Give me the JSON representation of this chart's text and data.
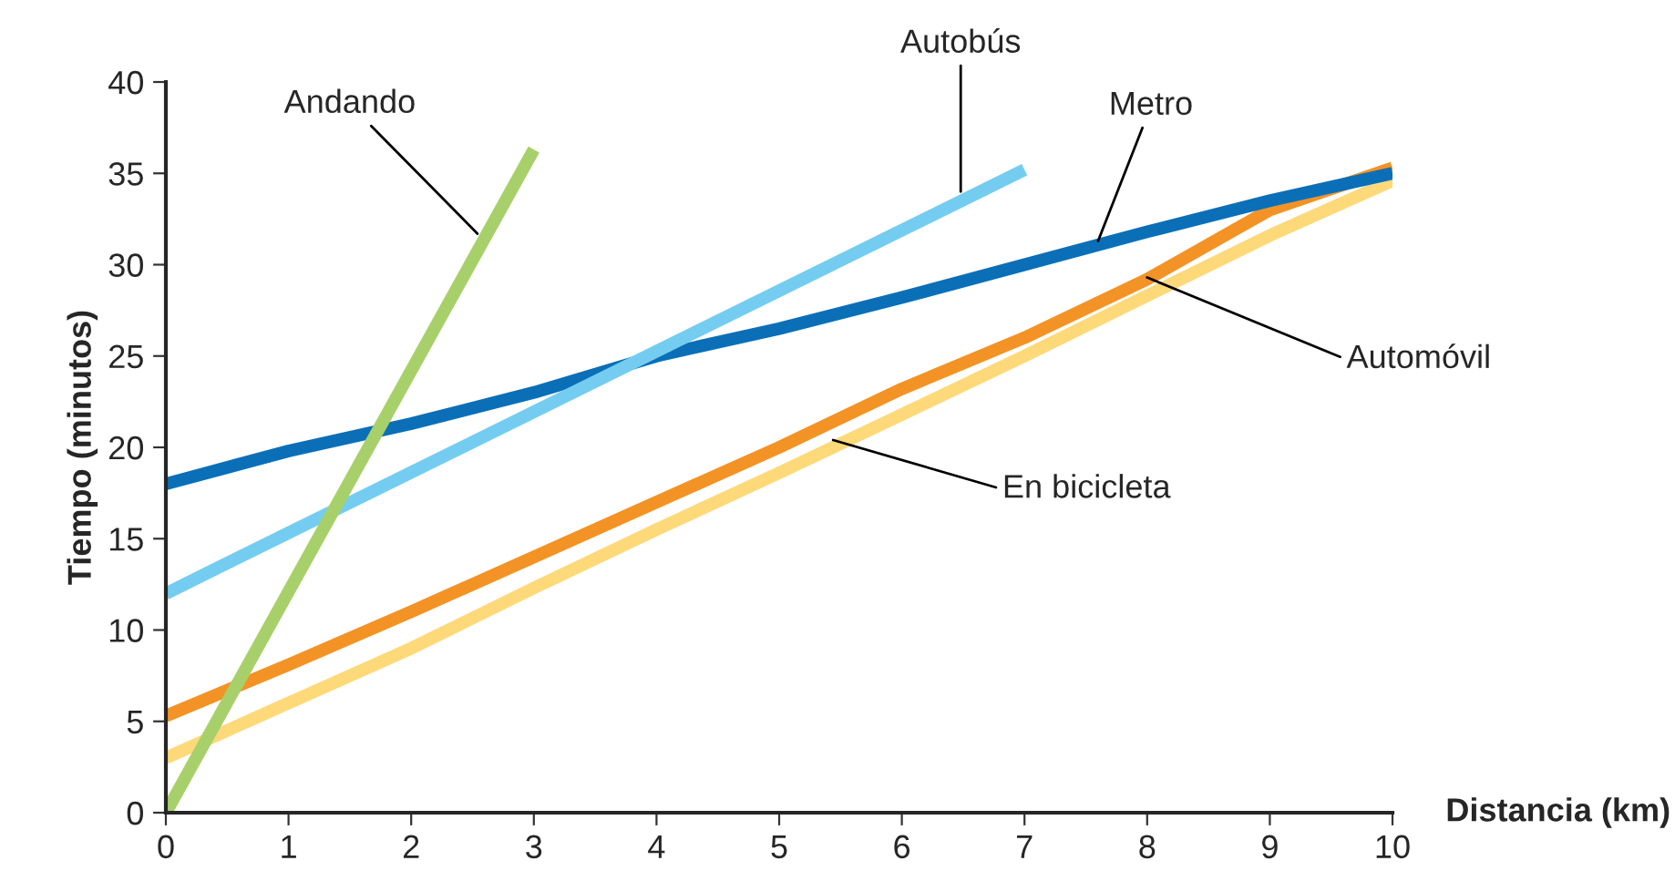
{
  "chart_data": {
    "type": "line",
    "xlabel": "Distancia (km)",
    "ylabel": "Tiempo (minutos)",
    "xlim": [
      0,
      10
    ],
    "ylim": [
      0,
      40
    ],
    "xticks": [
      0,
      1,
      2,
      3,
      4,
      5,
      6,
      7,
      8,
      9,
      10
    ],
    "yticks": [
      0,
      5,
      10,
      15,
      20,
      25,
      30,
      35,
      40
    ],
    "grid": false,
    "legend": false,
    "marker": "none",
    "line_style": "solid",
    "series": [
      {
        "color": "#fdd97a",
        "x": [
          0,
          1,
          2,
          3,
          4,
          5,
          6,
          7,
          8,
          9,
          10
        ],
        "values": [
          3,
          6,
          9,
          12.3,
          15.5,
          18.6,
          21.8,
          25,
          28.3,
          31.6,
          34.6
        ]
      },
      {
        "color": "#f39325",
        "x": [
          0,
          1,
          2,
          3,
          4,
          5,
          6,
          7,
          8,
          9,
          10
        ],
        "values": [
          5.3,
          8.1,
          11,
          14,
          17,
          20,
          23.2,
          26,
          29.2,
          33,
          35.3
        ]
      },
      {
        "color": "#0a6fb7",
        "x": [
          0,
          1,
          2,
          3,
          4,
          5,
          6,
          7,
          8,
          9,
          10
        ],
        "values": [
          18,
          19.8,
          21.3,
          23,
          25,
          26.5,
          28.2,
          30,
          31.8,
          33.5,
          35
        ]
      },
      {
        "color": "#74cdf0",
        "x": [
          0,
          7
        ],
        "values": [
          12,
          35.2
        ]
      },
      {
        "color": "#a8d06a",
        "x": [
          0,
          3
        ],
        "values": [
          0,
          36.3
        ]
      }
    ],
    "annotations": [
      {
        "text": "Andando",
        "x": 2.54,
        "y": 31.7
      },
      {
        "text": "Autobús",
        "x": 6.48,
        "y": 34
      },
      {
        "text": "Metro",
        "x": 7.6,
        "y": 31.3
      },
      {
        "text": "Automóvil",
        "x": 8.0,
        "y": 29.3
      },
      {
        "text": "En bicicleta",
        "x": 5.44,
        "y": 20.4
      }
    ]
  }
}
